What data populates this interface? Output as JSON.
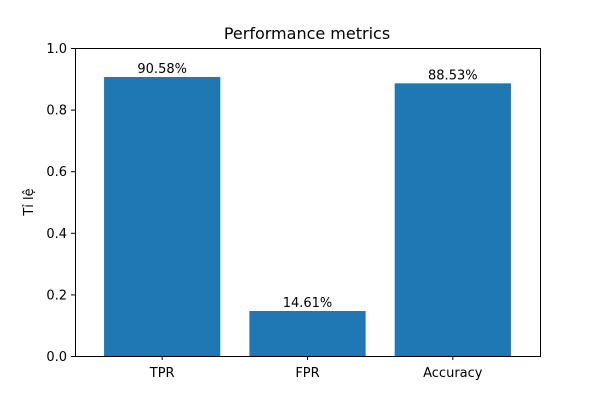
{
  "chart_data": {
    "type": "bar",
    "title": "Performance metrics",
    "xlabel": "",
    "ylabel": "Tỉ lệ",
    "categories": [
      "TPR",
      "FPR",
      "Accuracy"
    ],
    "values": [
      0.9058,
      0.1461,
      0.8853
    ],
    "data_labels": [
      "90.58%",
      "14.61%",
      "88.53%"
    ],
    "ylim": [
      0,
      1.0
    ],
    "yticks": [
      0.0,
      0.2,
      0.4,
      0.6,
      0.8,
      1.0
    ],
    "ytick_labels": [
      "0.0",
      "0.2",
      "0.4",
      "0.6",
      "0.8",
      "1.0"
    ],
    "bar_color": "#1f77b4",
    "grid": false,
    "legend": "none"
  }
}
